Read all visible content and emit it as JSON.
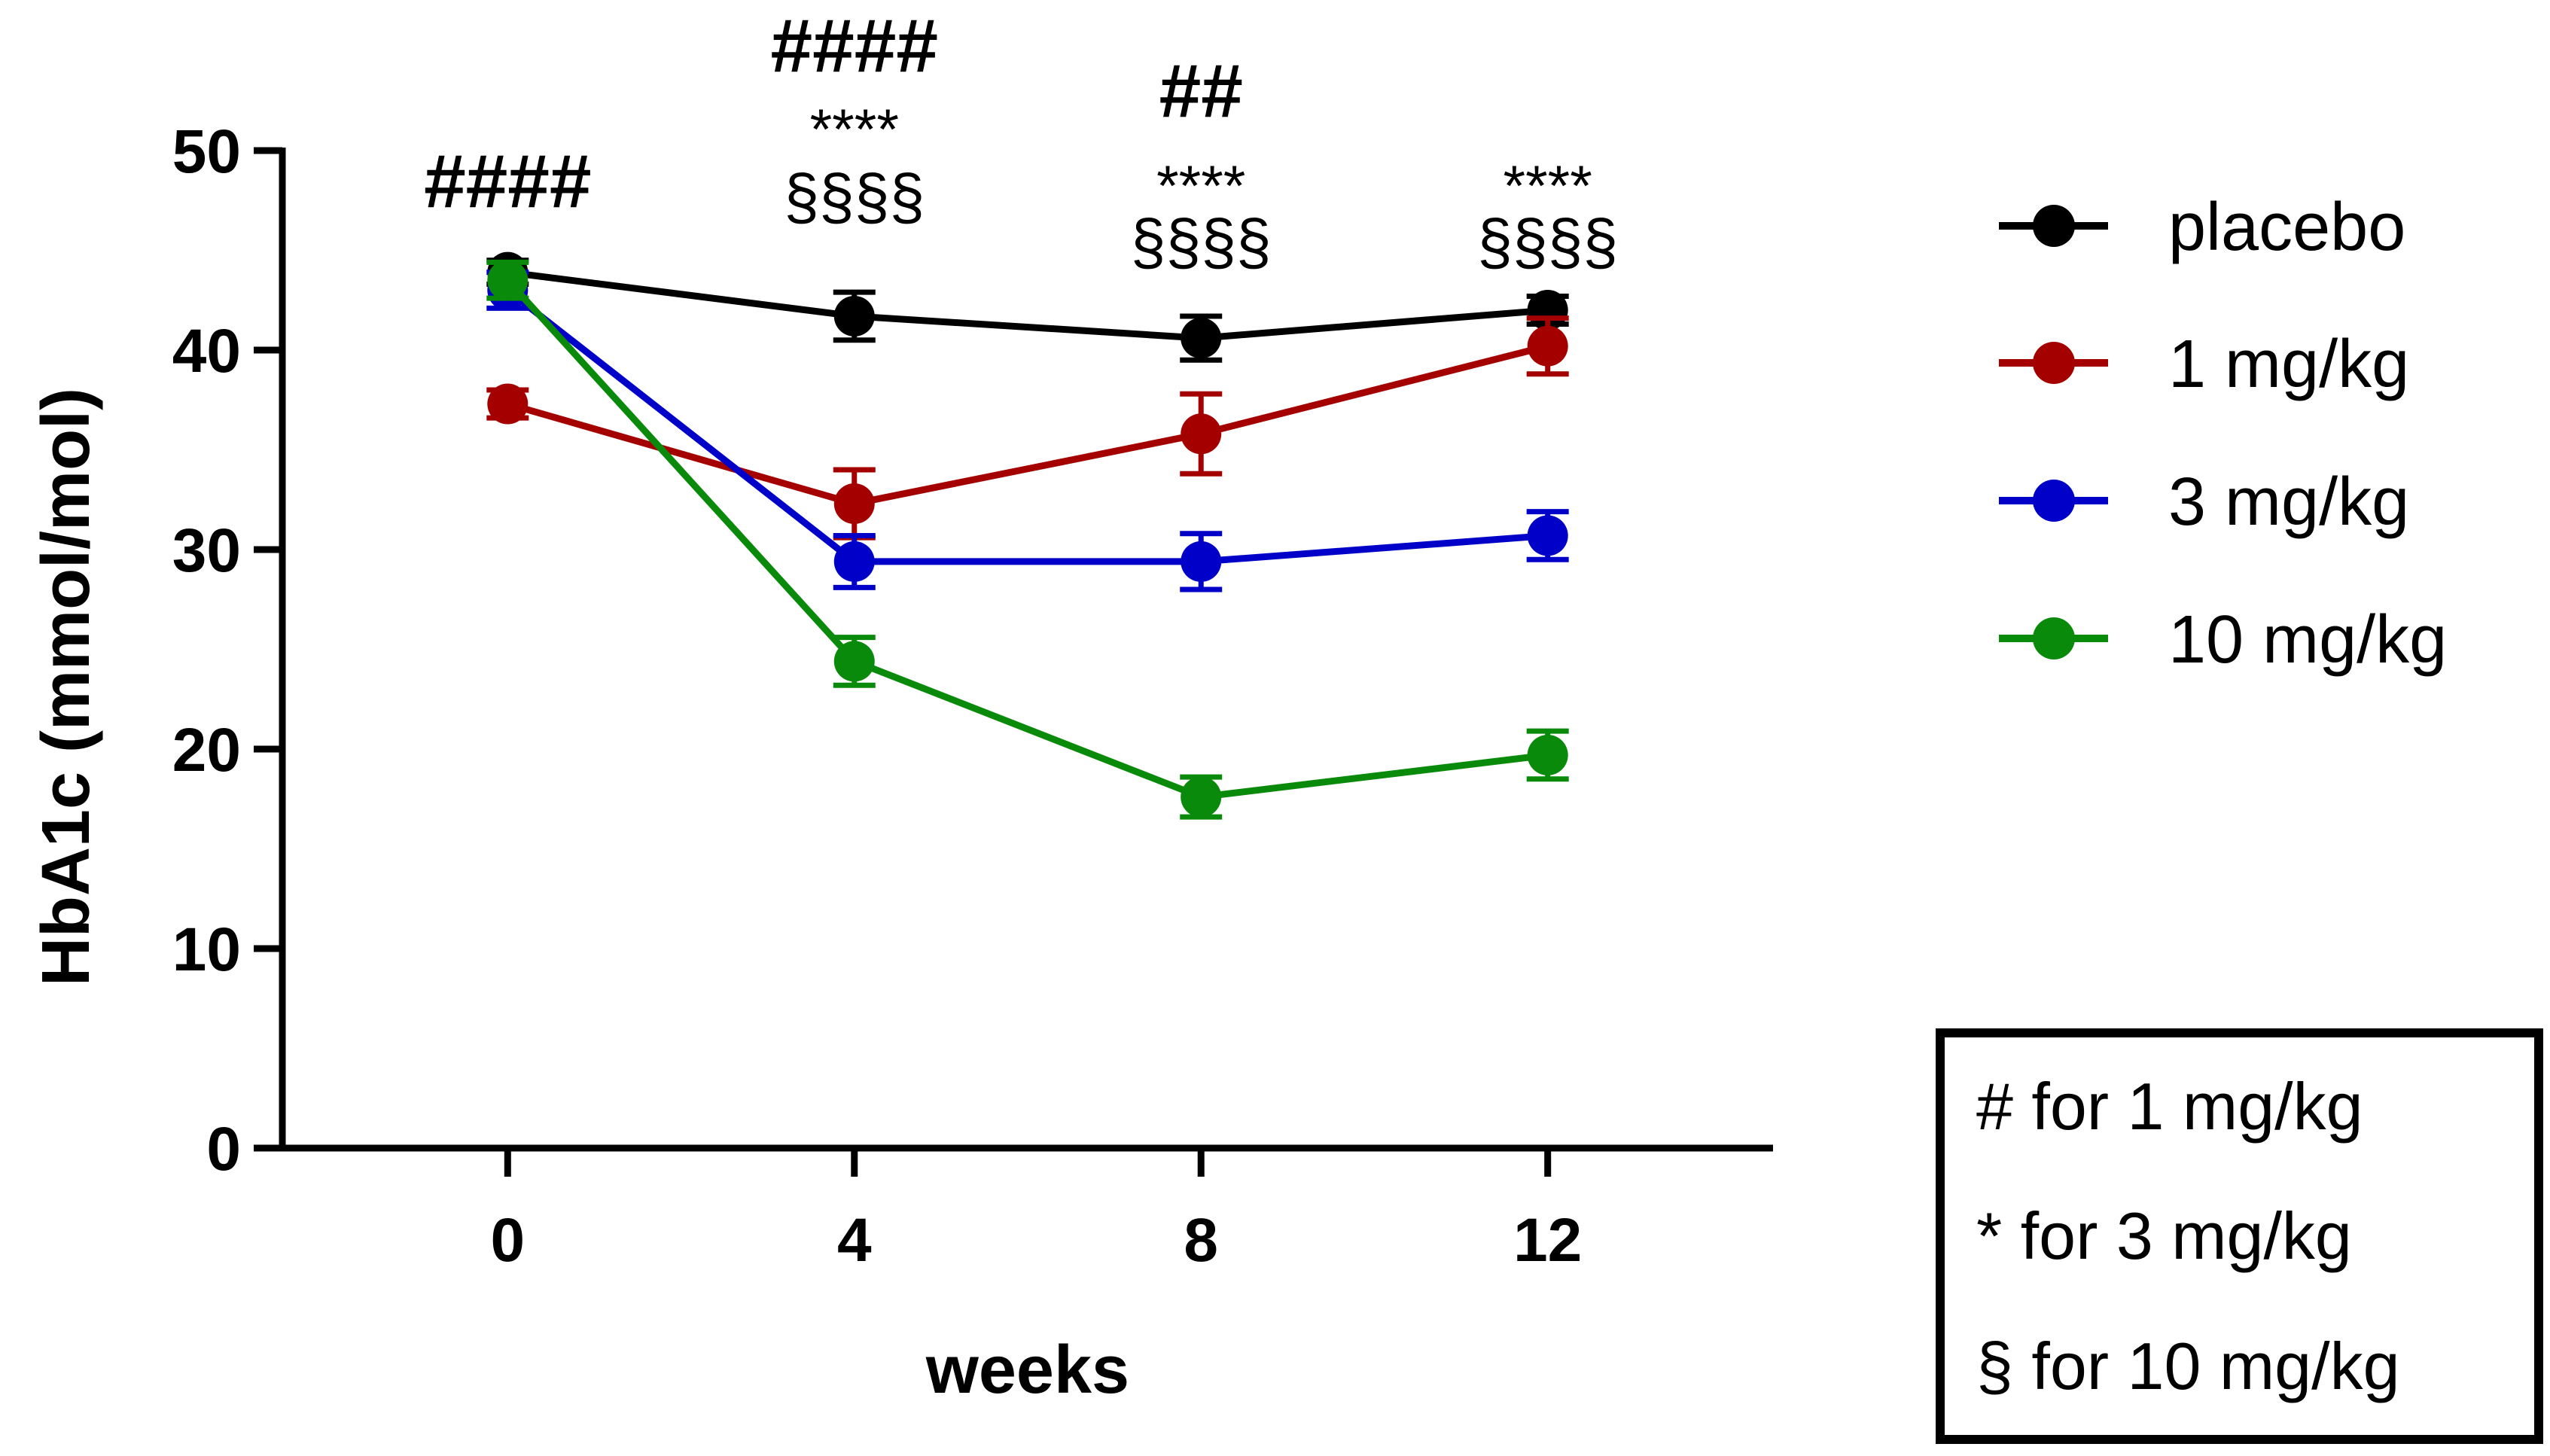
{
  "chart_data": {
    "type": "line",
    "title": "",
    "xlabel": "weeks",
    "ylabel": "HbA1c (mmol/mol)",
    "x": [
      0,
      4,
      8,
      12
    ],
    "x_tick_labels": [
      "0",
      "4",
      "8",
      "12"
    ],
    "xlim": [
      -2.6,
      14.6
    ],
    "ylim": [
      0,
      50
    ],
    "y_ticks": [
      0,
      10,
      20,
      30,
      40,
      50
    ],
    "y_tick_labels": [
      "0",
      "10",
      "20",
      "30",
      "40",
      "50"
    ],
    "grid": false,
    "legend_position": "right",
    "series": [
      {
        "name": "placebo",
        "color": "#000000",
        "values": [
          43.9,
          41.7,
          40.6,
          42.0
        ],
        "errors": [
          0.6,
          1.2,
          1.1,
          0.7
        ]
      },
      {
        "name": "1 mg/kg",
        "color": "#a50000",
        "values": [
          37.3,
          32.3,
          35.8,
          40.2
        ],
        "errors": [
          0.7,
          1.7,
          2.0,
          1.4
        ]
      },
      {
        "name": "3 mg/kg",
        "color": "#0000c8",
        "values": [
          43.0,
          29.4,
          29.4,
          30.7
        ],
        "errors": [
          0.9,
          1.3,
          1.4,
          1.2
        ]
      },
      {
        "name": "10 mg/kg",
        "color": "#0a8a0a",
        "values": [
          43.5,
          24.4,
          17.6,
          19.7
        ],
        "errors": [
          0.9,
          1.2,
          1.0,
          1.2
        ]
      }
    ],
    "annotations": [
      {
        "x": 0,
        "lines": [
          "####"
        ]
      },
      {
        "x": 4,
        "lines": [
          "####",
          "****",
          "§§§§"
        ]
      },
      {
        "x": 8,
        "lines": [
          "##",
          "****",
          "§§§§"
        ]
      },
      {
        "x": 12,
        "lines": [
          "****",
          "§§§§"
        ]
      }
    ],
    "significance_key": [
      "# for 1 mg/kg",
      "* for 3 mg/kg",
      "§ for 10 mg/kg"
    ]
  }
}
